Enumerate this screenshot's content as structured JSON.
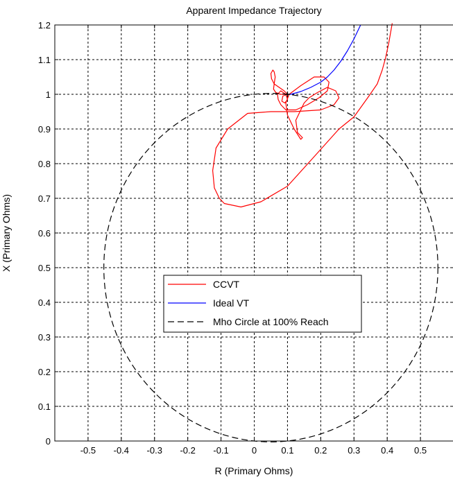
{
  "chart_data": {
    "type": "line",
    "title": "Apparent Impedance Trajectory",
    "xlabel": "R (Primary Ohms)",
    "ylabel": "X (Primary Ohms)",
    "xlim": [
      -0.6,
      0.6
    ],
    "ylim": [
      0,
      1.2
    ],
    "xticks": [
      -0.5,
      -0.4,
      -0.3,
      -0.2,
      -0.1,
      0,
      0.1,
      0.2,
      0.3,
      0.4,
      0.5
    ],
    "xtick_labels": [
      "-0.5",
      "-0.4",
      "-0.3",
      "-0.2",
      "-0.1",
      "0",
      "0.1",
      "0.2",
      "0.3",
      "0.4",
      "0.5"
    ],
    "yticks": [
      0,
      0.1,
      0.2,
      0.3,
      0.4,
      0.5,
      0.6,
      0.7,
      0.8,
      0.9,
      1,
      1.1,
      1.2
    ],
    "ytick_labels": [
      "0",
      "0.1",
      "0.2",
      "0.3",
      "0.4",
      "0.5",
      "0.6",
      "0.7",
      "0.8",
      "0.9",
      "1",
      "1.1",
      "1.2"
    ],
    "grid": true,
    "grid_style": "dashed",
    "legend_position": "center",
    "series": [
      {
        "name": "CCVT",
        "color": "#ff0000",
        "x": [
          0.415,
          0.405,
          0.395,
          0.385,
          0.37,
          0.345,
          0.3,
          0.255,
          0.18,
          0.1,
          0.02,
          -0.04,
          -0.09,
          -0.105,
          -0.12,
          -0.125,
          -0.115,
          -0.08,
          -0.02,
          0.05,
          0.12,
          0.2,
          0.24,
          0.255,
          0.245,
          0.22,
          0.19,
          0.165,
          0.15,
          0.14,
          0.125,
          0.13,
          0.145,
          0.14,
          0.12,
          0.1,
          0.095,
          0.105,
          0.14,
          0.18,
          0.21,
          0.225,
          0.22,
          0.195,
          0.16,
          0.125,
          0.095,
          0.08,
          0.072,
          0.07,
          0.08,
          0.095,
          0.1,
          0.092,
          0.083,
          0.086,
          0.1,
          0.09,
          0.075,
          0.06,
          0.052,
          0.05,
          0.056,
          0.06,
          0.063,
          0.06,
          0.058,
          0.065,
          0.08,
          0.1
        ],
        "y": [
          1.205,
          1.15,
          1.105,
          1.07,
          1.03,
          0.995,
          0.935,
          0.9,
          0.82,
          0.735,
          0.69,
          0.675,
          0.685,
          0.7,
          0.73,
          0.78,
          0.845,
          0.9,
          0.945,
          0.95,
          0.95,
          0.955,
          0.97,
          0.99,
          1.01,
          1.02,
          1.005,
          0.99,
          0.975,
          0.955,
          0.925,
          0.89,
          0.875,
          0.87,
          0.9,
          0.94,
          0.975,
          1.0,
          1.025,
          1.05,
          1.05,
          1.035,
          1.01,
          0.99,
          0.97,
          0.955,
          0.955,
          0.97,
          0.985,
          1.0,
          1.01,
          1.0,
          0.985,
          0.975,
          0.98,
          0.995,
          1.0,
          1.01,
          1.02,
          1.03,
          1.045,
          1.06,
          1.07,
          1.065,
          1.05,
          1.03,
          1.015,
          1.005,
          1.0,
          1.0
        ]
      },
      {
        "name": "Ideal VT",
        "color": "#0000ff",
        "x": [
          0.32,
          0.3,
          0.28,
          0.26,
          0.24,
          0.22,
          0.2,
          0.17,
          0.14,
          0.11,
          0.1
        ],
        "y": [
          1.2,
          1.16,
          1.125,
          1.095,
          1.07,
          1.05,
          1.035,
          1.02,
          1.008,
          1.0,
          1.0
        ]
      },
      {
        "name": "Mho Circle at 100% Reach",
        "color": "#000000",
        "style": "dashed",
        "shape": "circle",
        "center": [
          0.05,
          0.5
        ],
        "radius": 0.5025
      }
    ]
  }
}
